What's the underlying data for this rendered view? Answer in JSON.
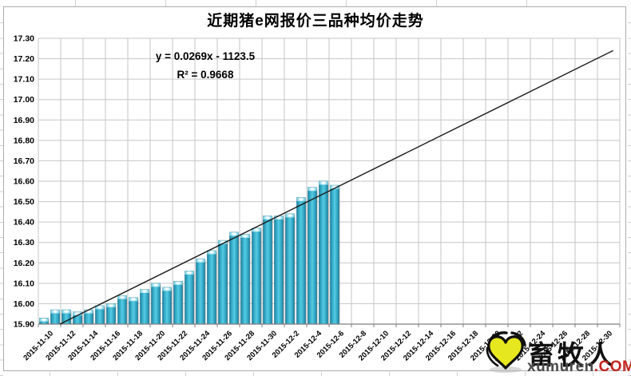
{
  "chart_data": {
    "type": "bar",
    "title": "近期猪e网报价三品种均价走势",
    "y_axis": {
      "min": 15.9,
      "max": 17.3,
      "step": 0.1,
      "tick_labels": [
        "17.30",
        "17.20",
        "17.10",
        "17.00",
        "16.90",
        "16.80",
        "16.70",
        "16.60",
        "16.50",
        "16.40",
        "16.30",
        "16.20",
        "16.10",
        "16.00",
        "15.90"
      ]
    },
    "x_axis": {
      "tick_labels": [
        "2015-11-10",
        "2015-11-12",
        "2015-11-14",
        "2015-11-16",
        "2015-11-18",
        "2015-11-20",
        "2015-11-22",
        "2015-11-24",
        "2015-11-26",
        "2015-11-28",
        "2015-11-30",
        "2015-12-2",
        "2015-12-4",
        "2015-12-6",
        "2015-12-8",
        "2015-12-10",
        "2015-12-12",
        "2015-12-14",
        "2015-12-16",
        "2015-12-18",
        "2015-12-20",
        "2015-12-22",
        "2015-12-24",
        "2015-12-26",
        "2015-12-28",
        "2015-12-30"
      ]
    },
    "bars": {
      "dates": [
        "2015-11-10",
        "2015-11-11",
        "2015-11-12",
        "2015-11-13",
        "2015-11-14",
        "2015-11-15",
        "2015-11-16",
        "2015-11-17",
        "2015-11-18",
        "2015-11-19",
        "2015-11-20",
        "2015-11-21",
        "2015-11-22",
        "2015-11-23",
        "2015-11-24",
        "2015-11-25",
        "2015-11-26",
        "2015-11-27",
        "2015-11-28",
        "2015-11-29",
        "2015-11-30",
        "2015-12-1",
        "2015-12-2",
        "2015-12-3",
        "2015-12-4",
        "2015-12-5",
        "2015-12-6"
      ],
      "values": [
        15.93,
        15.97,
        15.97,
        15.96,
        15.97,
        15.99,
        16.0,
        16.04,
        16.03,
        16.07,
        16.1,
        16.08,
        16.11,
        16.16,
        16.22,
        16.26,
        16.31,
        16.35,
        16.34,
        16.37,
        16.43,
        16.43,
        16.44,
        16.52,
        16.57,
        16.6,
        16.58
      ]
    },
    "trendline": {
      "equation": "y = 0.0269x - 1123.5",
      "r_squared": "R² = 0.9668",
      "start_day": 1.43,
      "start_value": 15.9,
      "end_day": 50.9,
      "end_value": 17.24
    },
    "grid": true,
    "legend": "none",
    "colors": {
      "bar_edge": "#1d7e9b",
      "bar_mid": "#2fa3c0",
      "bar_center": "#55cbe3",
      "bar_cap": "#d9f6fb",
      "bar_stroke": "#17718c",
      "gridline": "#c6c6c6",
      "axis": "#7f7f7f",
      "trendline": "#1a1a1a"
    }
  },
  "watermark": {
    "brand": "畜牧人",
    "domain": "xumuren",
    "tld": ".COM",
    "heart_color": "#e7e71f",
    "tld_color": "#c4251f"
  }
}
